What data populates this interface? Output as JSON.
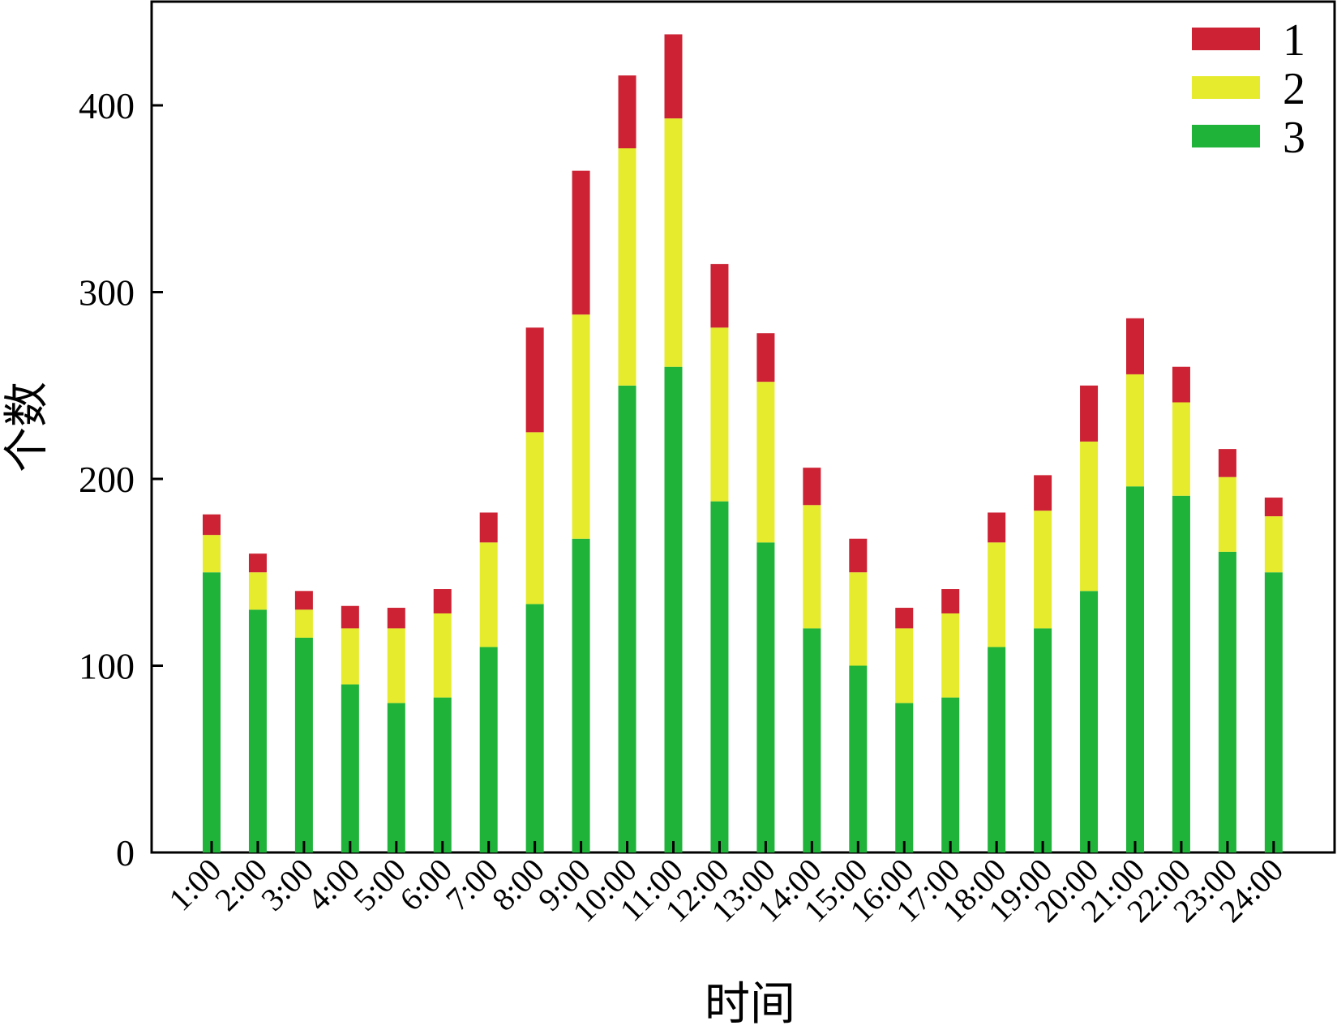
{
  "chart_data": {
    "type": "bar",
    "stacked": true,
    "title": "",
    "xlabel": "时间",
    "ylabel": "个数",
    "ylim": [
      0,
      450
    ],
    "yticks": [
      0,
      100,
      200,
      300,
      400
    ],
    "ytick_labels": [
      "0",
      "100",
      "200",
      "300",
      "400"
    ],
    "grid": false,
    "legend_position": "top-right",
    "categories": [
      "1:00",
      "2:00",
      "3:00",
      "4:00",
      "5:00",
      "6:00",
      "7:00",
      "8:00",
      "9:00",
      "10:00",
      "11:00",
      "12:00",
      "13:00",
      "14:00",
      "15:00",
      "16:00",
      "17:00",
      "18:00",
      "19:00",
      "20:00",
      "21:00",
      "22:00",
      "23:00",
      "24:00"
    ],
    "series": [
      {
        "name": "3",
        "color": "#1fb33a",
        "values": [
          150,
          130,
          115,
          90,
          80,
          83,
          110,
          133,
          168,
          250,
          260,
          188,
          166,
          120,
          100,
          80,
          83,
          110,
          120,
          140,
          196,
          191,
          161,
          150
        ]
      },
      {
        "name": "2",
        "color": "#e6eb2e",
        "values": [
          20,
          20,
          15,
          30,
          40,
          45,
          56,
          92,
          120,
          127,
          133,
          93,
          86,
          66,
          50,
          40,
          45,
          56,
          63,
          80,
          60,
          50,
          40,
          30
        ]
      },
      {
        "name": "1",
        "color": "#cc2233",
        "values": [
          11,
          10,
          10,
          12,
          11,
          13,
          16,
          56,
          77,
          39,
          45,
          34,
          26,
          20,
          18,
          11,
          13,
          16,
          19,
          30,
          30,
          19,
          15,
          10
        ]
      }
    ],
    "legend_order": [
      "1",
      "2",
      "3"
    ]
  }
}
